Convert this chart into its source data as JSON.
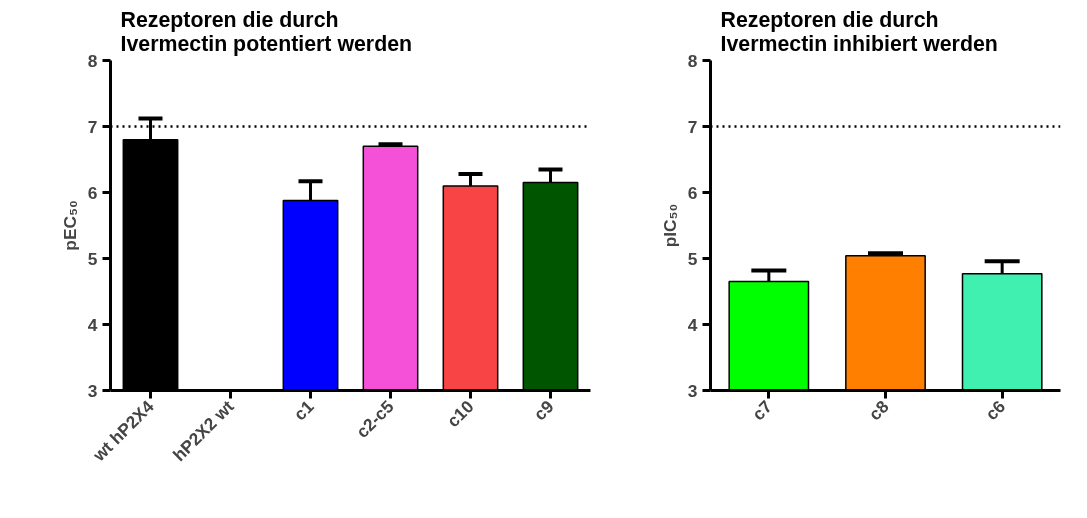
{
  "chart_data": [
    {
      "type": "bar",
      "title": "Rezeptoren die durch\nIvermectin potentiert werden",
      "ylabel": "pEC₅₀",
      "categories": [
        "wt hP2X4",
        "hP2X2 wt",
        "c1",
        "c2-c5",
        "c10",
        "c9"
      ],
      "values": [
        6.8,
        null,
        5.88,
        6.7,
        6.1,
        6.15
      ],
      "colors": [
        "#000000",
        "#ffffff",
        "#0000ff",
        "#f550d8",
        "#f84444",
        "#005500"
      ],
      "errors": [
        [
          6.8,
          7.12
        ],
        null,
        [
          5.88,
          6.17
        ],
        [
          6.7,
          6.73
        ],
        [
          6.1,
          6.28
        ],
        [
          6.15,
          6.35
        ]
      ],
      "ylim": [
        3,
        8
      ],
      "yticks": [
        3,
        4,
        5,
        6,
        7,
        8
      ],
      "grid": false,
      "ref_lines": [
        {
          "axis": "y",
          "value": 7,
          "label": null,
          "line_style": "dotted",
          "color": "#000000"
        }
      ]
    },
    {
      "type": "bar",
      "title": "Rezeptoren die durch\nIvermectin inhibiert werden",
      "ylabel": "pIC₅₀",
      "categories": [
        "c7",
        "c8",
        "c6"
      ],
      "values": [
        4.65,
        5.04,
        4.77
      ],
      "colors": [
        "#00ff00",
        "#ff8000",
        "#40f0b0"
      ],
      "errors": [
        [
          4.65,
          4.82
        ],
        [
          5.04,
          5.08
        ],
        [
          4.77,
          4.96
        ]
      ],
      "ylim": [
        3,
        8
      ],
      "yticks": [
        3,
        4,
        5,
        6,
        7,
        8
      ],
      "grid": false,
      "ref_lines": [
        {
          "axis": "y",
          "value": 7,
          "label": null,
          "line_style": "dotted",
          "color": "#000000"
        }
      ]
    }
  ]
}
